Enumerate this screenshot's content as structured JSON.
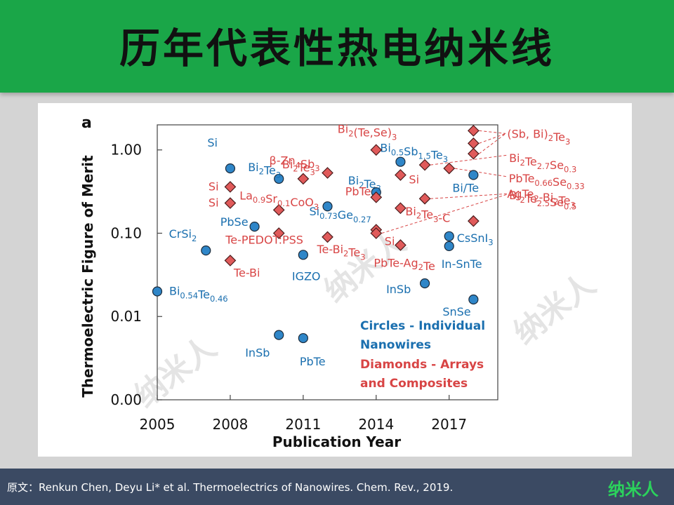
{
  "header": {
    "title": "历年代表性热电纳米线"
  },
  "footer": {
    "source": "原文：Renkun Chen, Deyu Li* et al. Thermoelectrics of Nanowires. Chem. Rev., 2019.",
    "logo": "纳米人"
  },
  "watermark": "纳米人",
  "colors": {
    "circle": "#2f86c8",
    "diamond": "#e05a5a",
    "circle_text": "#1a6faf",
    "diamond_text": "#d84545",
    "header": "#1aa648",
    "footer": "#3b4a63"
  },
  "chart_data": {
    "type": "scatter",
    "panel_label": "a",
    "xlabel": "Publication Year",
    "ylabel": "Thermoelectric Figure of Merit",
    "xlim": [
      2005,
      2019
    ],
    "x_ticks": [
      2005,
      2008,
      2011,
      2014,
      2017
    ],
    "y_scale": "log",
    "ylim": [
      0.001,
      2.0
    ],
    "y_ticks": [
      {
        "value": 0.001,
        "label": "0.00"
      },
      {
        "value": 0.01,
        "label": "0.01"
      },
      {
        "value": 0.1,
        "label": "0.10"
      },
      {
        "value": 1.0,
        "label": "1.00"
      }
    ],
    "legend": {
      "position": "bottom-right",
      "entries": [
        {
          "text": "Circles  - Individual",
          "series": "circles"
        },
        {
          "text": "Nanowires",
          "series": "circles"
        },
        {
          "text": "Diamonds - Arrays",
          "series": "diamonds"
        },
        {
          "text": "and Composites",
          "series": "diamonds"
        }
      ]
    },
    "series": [
      {
        "name": "Circles  - Individual Nanowires",
        "marker": "circle",
        "points": [
          {
            "x": 2005,
            "y": 0.02,
            "label": [
              [
                "Bi",
                ""
              ],
              [
                "0.54",
                "sub"
              ],
              [
                "Te",
                ""
              ],
              [
                "0.46",
                "sub"
              ]
            ]
          },
          {
            "x": 2007,
            "y": 0.062,
            "label": [
              [
                "CrSi",
                ""
              ],
              [
                "2",
                "sub"
              ]
            ]
          },
          {
            "x": 2008,
            "y": 0.6,
            "label": [
              [
                "Si",
                ""
              ]
            ]
          },
          {
            "x": 2009,
            "y": 0.12,
            "label": [
              [
                "PbSe",
                ""
              ]
            ]
          },
          {
            "x": 2010,
            "y": 0.45,
            "label": [
              [
                "Bi",
                ""
              ],
              [
                "2",
                "sub"
              ],
              [
                "Te",
                ""
              ],
              [
                "3",
                "sub"
              ]
            ]
          },
          {
            "x": 2010,
            "y": 0.006,
            "label": [
              [
                "InSb",
                ""
              ]
            ]
          },
          {
            "x": 2011,
            "y": 0.055,
            "label": [
              [
                "IGZO",
                ""
              ]
            ]
          },
          {
            "x": 2011,
            "y": 0.0055,
            "label": [
              [
                "PbTe",
                ""
              ]
            ]
          },
          {
            "x": 2012,
            "y": 0.21,
            "label": [
              [
                "Si",
                ""
              ],
              [
                "0.73",
                "sub"
              ],
              [
                "Ge",
                ""
              ],
              [
                "0.27",
                "sub"
              ]
            ]
          },
          {
            "x": 2014,
            "y": 0.31,
            "label": [
              [
                "Bi",
                ""
              ],
              [
                "2",
                "sub"
              ],
              [
                "Te",
                ""
              ],
              [
                "3",
                "sub"
              ]
            ]
          },
          {
            "x": 2015,
            "y": 0.72,
            "label": [
              [
                "Bi",
                ""
              ],
              [
                "0.5",
                "sub"
              ],
              [
                "Sb",
                ""
              ],
              [
                "1.5",
                "sub"
              ],
              [
                "Te",
                ""
              ],
              [
                "3",
                "sub"
              ]
            ]
          },
          {
            "x": 2016,
            "y": 0.025,
            "label": [
              [
                "InSb",
                ""
              ]
            ]
          },
          {
            "x": 2017,
            "y": 0.092,
            "label": [
              [
                "CsSnI",
                ""
              ],
              [
                "3",
                "sub"
              ]
            ]
          },
          {
            "x": 2017,
            "y": 0.07,
            "label": [
              [
                "In-SnTe",
                ""
              ]
            ]
          },
          {
            "x": 2018,
            "y": 0.5,
            "label": [
              [
                "Bi/Te",
                ""
              ]
            ]
          },
          {
            "x": 2018,
            "y": 0.016,
            "label": [
              [
                "SnSe",
                ""
              ]
            ]
          }
        ]
      },
      {
        "name": "Diamonds - Arrays and Composites",
        "marker": "diamond",
        "points": [
          {
            "x": 2008,
            "y": 0.36,
            "label": [
              [
                "Si",
                ""
              ]
            ]
          },
          {
            "x": 2008,
            "y": 0.23,
            "label": [
              [
                "Si",
                ""
              ]
            ]
          },
          {
            "x": 2008,
            "y": 0.047,
            "label": [
              [
                "Te-Bi",
                ""
              ]
            ]
          },
          {
            "x": 2010,
            "y": 0.19,
            "label": [
              [
                "La",
                ""
              ],
              [
                "0.9",
                "sub"
              ],
              [
                "Sr",
                ""
              ],
              [
                "0.1",
                "sub"
              ],
              [
                "CoO",
                ""
              ],
              [
                "3",
                "sub"
              ]
            ]
          },
          {
            "x": 2010,
            "y": 0.1,
            "label": [
              [
                "Te-PEDOT:PSS",
                ""
              ]
            ]
          },
          {
            "x": 2011,
            "y": 0.45,
            "label": [
              [
                "Bi",
                ""
              ],
              [
                "2",
                "sub"
              ],
              [
                "Te",
                ""
              ],
              [
                "3",
                "sub"
              ]
            ]
          },
          {
            "x": 2012,
            "y": 0.53,
            "label": [
              [
                "β-Zn",
                ""
              ],
              [
                "4",
                "sub"
              ],
              [
                "Sb",
                ""
              ],
              [
                "3",
                "sub"
              ]
            ]
          },
          {
            "x": 2012,
            "y": 0.09,
            "label": [
              [
                "Te-Bi",
                ""
              ],
              [
                "2",
                "sub"
              ],
              [
                "Te",
                ""
              ],
              [
                "3",
                "sub"
              ]
            ]
          },
          {
            "x": 2014,
            "y": 1.0,
            "label": [
              [
                "Bi",
                ""
              ],
              [
                "2",
                "sub"
              ],
              [
                "(Te,Se)",
                ""
              ],
              [
                "3",
                "sub"
              ]
            ]
          },
          {
            "x": 2014,
            "y": 0.27,
            "label": [
              [
                "PbTe",
                ""
              ]
            ]
          },
          {
            "x": 2014,
            "y": 0.11,
            "label": [
              [
                "Si",
                ""
              ]
            ]
          },
          {
            "x": 2014,
            "y": 0.1,
            "label": []
          },
          {
            "x": 2015,
            "y": 0.5,
            "label": [
              [
                "Si",
                ""
              ]
            ]
          },
          {
            "x": 2015,
            "y": 0.2,
            "label": [
              [
                "Bi",
                ""
              ],
              [
                "2",
                "sub"
              ],
              [
                "Te",
                ""
              ],
              [
                "3",
                "sub"
              ],
              [
                "-C",
                ""
              ]
            ]
          },
          {
            "x": 2015,
            "y": 0.072,
            "label": [
              [
                "PbTe-Ag",
                ""
              ],
              [
                "2",
                "sub"
              ],
              [
                "Te",
                ""
              ]
            ]
          },
          {
            "x": 2016,
            "y": 0.66,
            "label": [
              [
                "Bi",
                ""
              ],
              [
                "2",
                "sub"
              ],
              [
                "Te",
                ""
              ],
              [
                "2.7",
                "sub"
              ],
              [
                "Se",
                ""
              ],
              [
                "0.3",
                "sub"
              ]
            ]
          },
          {
            "x": 2016,
            "y": 0.26,
            "label": [
              [
                "Bi",
                ""
              ],
              [
                "2",
                "sub"
              ],
              [
                "Te",
                ""
              ],
              [
                "2.5",
                "sub"
              ],
              [
                "Se",
                ""
              ],
              [
                "0.5",
                "sub"
              ]
            ]
          },
          {
            "x": 2017,
            "y": 0.6,
            "label": [
              [
                "PbTe",
                ""
              ],
              [
                "0.66",
                "sub"
              ],
              [
                "Se",
                ""
              ],
              [
                "0.33",
                "sub"
              ]
            ]
          },
          {
            "x": 2018,
            "y": 1.7,
            "label": [
              [
                "(Sb, Bi)",
                ""
              ],
              [
                "2",
                "sub"
              ],
              [
                "Te",
                ""
              ],
              [
                "3",
                "sub"
              ]
            ]
          },
          {
            "x": 2018,
            "y": 1.2,
            "label": []
          },
          {
            "x": 2018,
            "y": 0.9,
            "label": []
          },
          {
            "x": 2018,
            "y": 0.14,
            "label": [
              [
                "AgTe",
                ""
              ],
              [
                "2",
                "sub"
              ],
              [
                "-Bi",
                ""
              ],
              [
                "2",
                "sub"
              ],
              [
                "Te",
                ""
              ],
              [
                "3",
                "sub"
              ]
            ]
          }
        ]
      }
    ]
  }
}
